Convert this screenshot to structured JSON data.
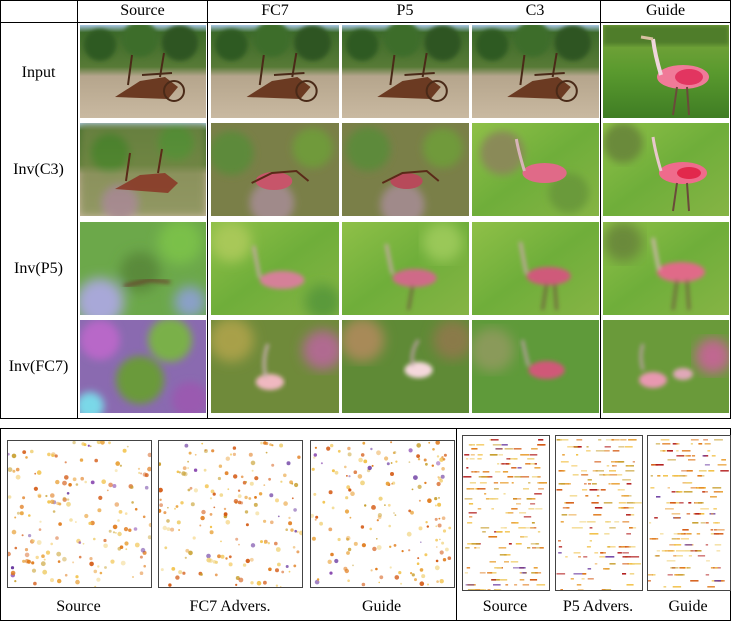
{
  "figure": {
    "column_headers": [
      "Source",
      "FC7",
      "P5",
      "C3",
      "Guide"
    ],
    "row_labels": [
      "Input",
      "Inv(C3)",
      "Inv(P5)",
      "Inv(FC7)"
    ],
    "bottom_left_captions": [
      "Source",
      "FC7 Advers.",
      "Guide"
    ],
    "bottom_right_captions": [
      "Source",
      "P5 Advers.",
      "Guide"
    ]
  },
  "colors": {
    "grass_green": "#6fae3a",
    "soil": "#b9a88f",
    "flamingo_pink": "#e05a7a",
    "tree_green": "#3f6a2a",
    "activation_orange": "#e08a1a",
    "activation_purple": "#6a3aa0"
  },
  "image_descriptions": {
    "plow_input": "plow-photo",
    "spoonbill_input": "spoonbill-photo"
  }
}
